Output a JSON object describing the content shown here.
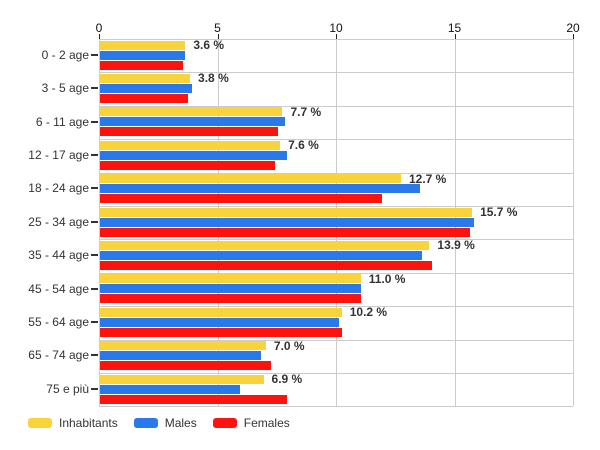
{
  "chart_data": {
    "type": "bar",
    "orientation": "horizontal",
    "title": "",
    "categories": [
      "0 - 2 age",
      "3 - 5 age",
      "6 - 11 age",
      "12 - 17 age",
      "18 - 24 age",
      "25 - 34 age",
      "35 - 44 age",
      "45 - 54 age",
      "55 - 64 age",
      "65 - 74 age",
      "75 e più"
    ],
    "series": [
      {
        "name": "Inhabitants",
        "color": "#F8D33C",
        "values": [
          3.6,
          3.8,
          7.7,
          7.6,
          12.7,
          15.7,
          13.9,
          11.0,
          10.2,
          7.0,
          6.9
        ]
      },
      {
        "name": "Males",
        "color": "#2979EB",
        "values": [
          3.6,
          3.9,
          7.8,
          7.9,
          13.5,
          15.8,
          13.6,
          11.0,
          10.1,
          6.8,
          5.9
        ]
      },
      {
        "name": "Females",
        "color": "#FC130E",
        "values": [
          3.5,
          3.7,
          7.5,
          7.4,
          11.9,
          15.6,
          14.0,
          11.0,
          10.2,
          7.2,
          7.9
        ]
      }
    ],
    "value_labels": [
      "3.6 %",
      "3.8 %",
      "7.7 %",
      "7.6 %",
      "12.7 %",
      "15.7 %",
      "13.9 %",
      "11.0 %",
      "10.2 %",
      "7.0 %",
      "6.9 %"
    ],
    "value_labels_series": "Inhabitants",
    "xlim": [
      0,
      20
    ],
    "xticks": [
      "0",
      "5",
      "10",
      "15",
      "20"
    ],
    "grid": true,
    "gridline_color": "#cccccc",
    "legend_position": "bottom-left",
    "legend": [
      "Inhabitants",
      "Males",
      "Females"
    ]
  }
}
